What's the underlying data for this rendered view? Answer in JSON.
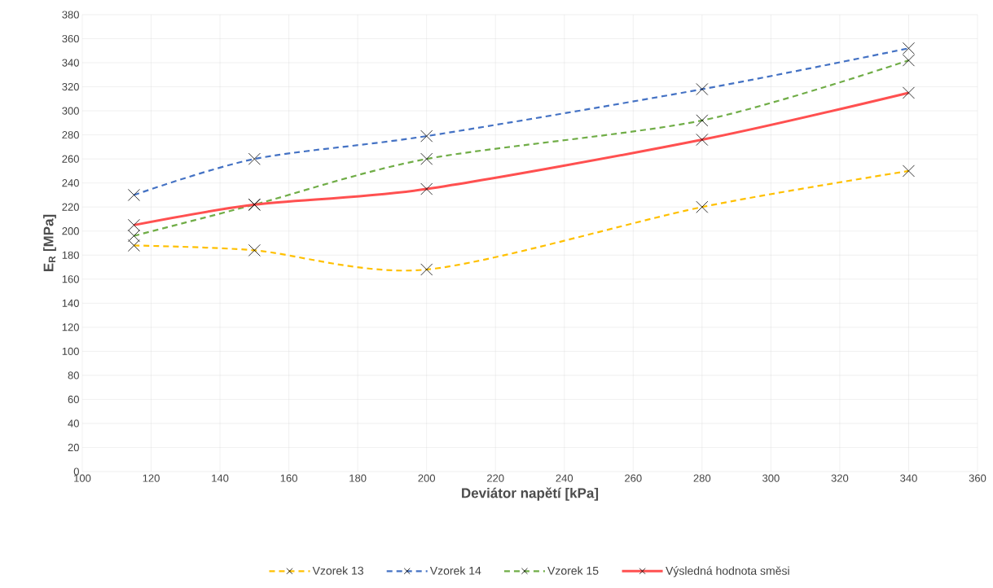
{
  "chart_data": {
    "type": "line",
    "xlabel": "Deviátor napětí [kPa]",
    "ylabel": "E$_{R}$ [MPa]",
    "x": [
      115,
      150,
      200,
      280,
      340
    ],
    "series": [
      {
        "name": "Vzorek 13",
        "color": "#ffc000",
        "line_style": "dashed",
        "values": [
          188,
          184,
          168,
          220,
          250
        ]
      },
      {
        "name": "Vzorek 14",
        "color": "#4472c4",
        "line_style": "dashed",
        "values": [
          230,
          260,
          279,
          318,
          352
        ]
      },
      {
        "name": "Vzorek 15",
        "color": "#70ad47",
        "line_style": "dashed",
        "values": [
          196,
          222,
          260,
          292,
          342
        ]
      },
      {
        "name": "Výsledná hodnota směsi",
        "color": "#ff5050",
        "line_style": "solid",
        "values": [
          205,
          222,
          235,
          276,
          315
        ]
      }
    ],
    "marker": "cross",
    "grid": true,
    "legend": "bottom",
    "xlim": [
      100,
      360
    ],
    "xticks": [
      100,
      120,
      140,
      160,
      180,
      200,
      220,
      240,
      260,
      280,
      300,
      320,
      340,
      360
    ],
    "ylim": [
      0,
      380
    ],
    "yticks": [
      0,
      20,
      40,
      60,
      80,
      100,
      120,
      140,
      160,
      180,
      200,
      220,
      240,
      260,
      280,
      300,
      320,
      340,
      360,
      380
    ]
  }
}
